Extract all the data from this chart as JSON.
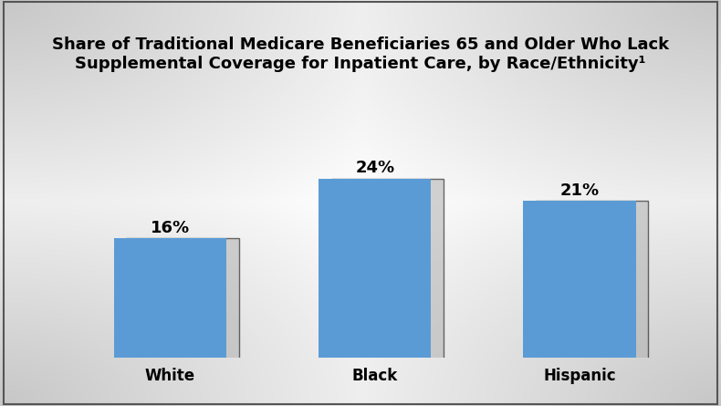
{
  "categories": [
    "White",
    "Black",
    "Hispanic"
  ],
  "values": [
    16,
    24,
    21
  ],
  "labels": [
    "16%",
    "24%",
    "21%"
  ],
  "bar_color": "#5B9BD5",
  "title_line1": "Share of Traditional Medicare Beneficiaries 65 and Older Who Lack",
  "title_line2": "Supplemental Coverage for Inpatient Care, by Race/Ethnicity¹",
  "ylim": [
    0,
    30
  ],
  "bar_width": 0.55,
  "title_fontsize": 13,
  "label_fontsize": 13,
  "tick_fontsize": 12,
  "shadow_color": "#b0b0b0",
  "shadow_alpha": 0.55,
  "border_color": "#888888",
  "x_positions": [
    0,
    1,
    2
  ],
  "xlim": [
    -0.55,
    2.55
  ]
}
